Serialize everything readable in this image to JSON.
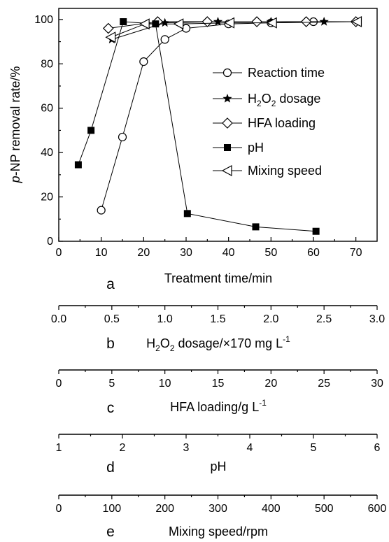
{
  "chart_data": [
    {
      "type": "line",
      "panel_label": "a",
      "xlabel": "Treatment time/min",
      "ylabel_italic": "p",
      "ylabel_rest": "-NP removal rate/%",
      "xlim": [
        0,
        75
      ],
      "ylim": [
        0,
        105
      ],
      "x_ticks": [
        0,
        10,
        20,
        30,
        40,
        50,
        60,
        70
      ],
      "y_ticks": [
        0,
        20,
        40,
        60,
        80,
        100
      ],
      "legend_position": "right",
      "series": [
        {
          "name": "Reaction time",
          "marker": "circle-open",
          "x": [
            10,
            15,
            20,
            25,
            30,
            40,
            50,
            60
          ],
          "y": [
            14,
            47,
            81,
            91,
            96,
            98,
            98.5,
            99
          ]
        },
        {
          "name_parts": [
            "H",
            "2",
            "O",
            "2",
            " dosage"
          ],
          "marker": "star",
          "x": [
            12.5,
            25,
            37.5,
            50,
            62.5
          ],
          "y": [
            91,
            98.5,
            99,
            99,
            99
          ]
        },
        {
          "name": "HFA loading",
          "marker": "diamond-open",
          "x": [
            11.67,
            23.3,
            35,
            46.67,
            58.3,
            70
          ],
          "y": [
            96,
            99,
            99,
            99,
            99,
            99
          ]
        },
        {
          "name": "pH",
          "marker": "square-filled",
          "x": [
            4.6,
            7.6,
            15.2,
            22.8,
            30.3,
            46.4,
            60.6
          ],
          "y": [
            34.5,
            50,
            99,
            98,
            12.5,
            6.5,
            4.5
          ]
        },
        {
          "name": "Mixing speed",
          "marker": "triangle-left-open",
          "x": [
            12.3,
            20.3,
            28.3,
            40.3,
            50.3,
            70.3
          ],
          "y": [
            92,
            98,
            98,
            98.5,
            98.5,
            99
          ]
        }
      ]
    },
    {
      "type": "axis",
      "panel_label": "b",
      "xlabel_parts": [
        "H",
        "2",
        "O",
        "2",
        " dosage/×170 mg L",
        "-1"
      ],
      "ticks": [
        "0.0",
        "0.5",
        "1.0",
        "1.5",
        "2.0",
        "2.5",
        "3.0"
      ],
      "range": [
        0,
        3
      ]
    },
    {
      "type": "axis",
      "panel_label": "c",
      "xlabel_parts": [
        "HFA loading/g L",
        "-1"
      ],
      "ticks": [
        "0",
        "5",
        "10",
        "15",
        "20",
        "25",
        "30"
      ],
      "range": [
        0,
        30
      ]
    },
    {
      "type": "axis",
      "panel_label": "d",
      "xlabel": "pH",
      "ticks": [
        "1",
        "2",
        "3",
        "4",
        "5",
        "6"
      ],
      "range": [
        1,
        6
      ]
    },
    {
      "type": "axis",
      "panel_label": "e",
      "xlabel": "Mixing speed/rpm",
      "ticks": [
        "0",
        "100",
        "200",
        "300",
        "400",
        "500",
        "600"
      ],
      "range": [
        0,
        600
      ]
    }
  ]
}
